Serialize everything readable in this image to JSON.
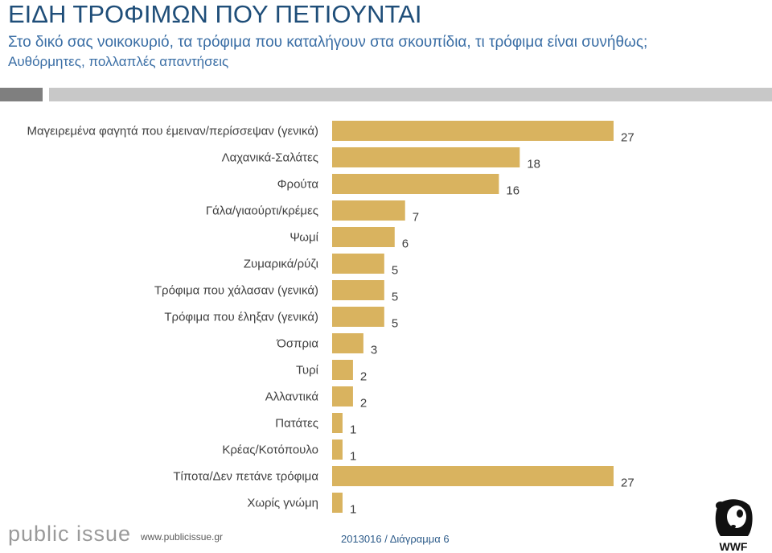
{
  "header": {
    "title": "ΕΙΔΗ ΤΡΟΦΙΜΩΝ ΠΟΥ ΠΕΤΙΟΥΝΤΑΙ",
    "subtitle": "Στο δικό σας νοικοκυριό, τα τρόφιμα που καταλήγουν στα σκουπίδια, τι τρόφιμα είναι συνήθως;",
    "subtitle2": "Αυθόρμητες, πολλαπλές απαντήσεις"
  },
  "footer": {
    "brand": "public issue",
    "url": "www.publicissue.gr",
    "code": "2013016 / Διάγραμμα 6",
    "logo_text": "WWF"
  },
  "colors": {
    "bar": "#d9b35f",
    "title": "#1f4e79"
  },
  "chart_data": {
    "type": "bar",
    "orientation": "horizontal",
    "categories": [
      "Μαγειρεμένα φαγητά που έμειναν/περίσσεψαν (γενικά)",
      "Λαχανικά-Σαλάτες",
      "Φρούτα",
      "Γάλα/γιαούρτι/κρέμες",
      "Ψωμί",
      "Ζυμαρικά/ρύζι",
      "Τρόφιμα που χάλασαν (γενικά)",
      "Τρόφιμα που έληξαν (γενικά)",
      "Όσπρια",
      "Τυρί",
      "Αλλαντικά",
      "Πατάτες",
      "Κρέας/Κοτόπουλο",
      "Τίποτα/Δεν πετάνε τρόφιμα",
      "Χωρίς γνώμη"
    ],
    "values": [
      27,
      18,
      16,
      7,
      6,
      5,
      5,
      5,
      3,
      2,
      2,
      1,
      1,
      27,
      1
    ],
    "xlim": [
      0,
      27
    ]
  }
}
